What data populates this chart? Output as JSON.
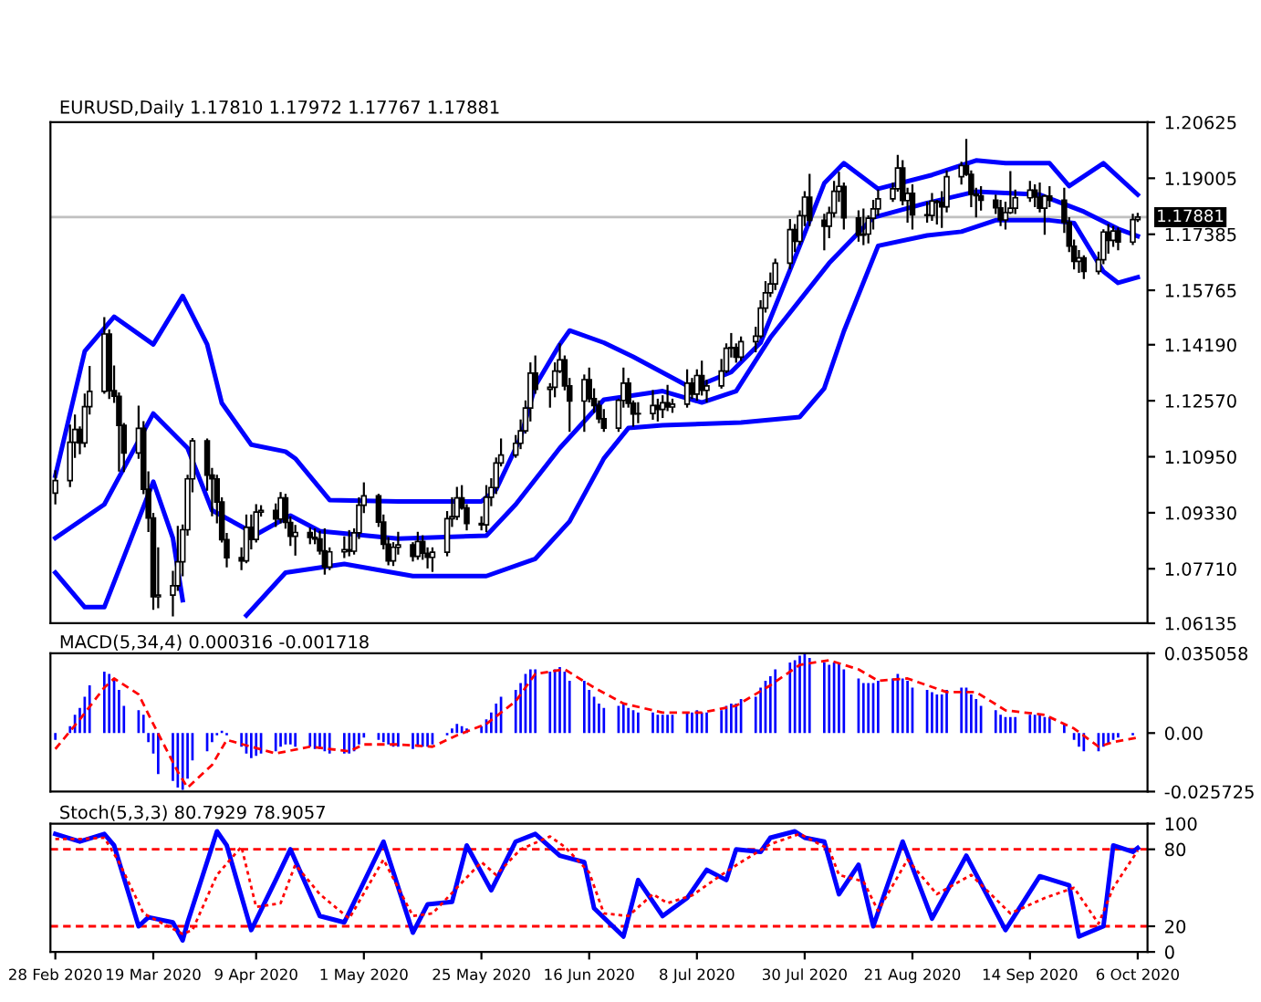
{
  "chart_data": [
    {
      "type": "candlestick",
      "title": "EURUSD,Daily 1.17810 1.17972 1.17767 1.17881",
      "x": [
        "2020-02-28",
        "2020-03-02",
        "2020-03-03",
        "2020-03-04",
        "2020-03-05",
        "2020-03-06",
        "2020-03-09",
        "2020-03-10",
        "2020-03-11",
        "2020-03-12",
        "2020-03-13",
        "2020-03-16",
        "2020-03-17",
        "2020-03-18",
        "2020-03-19",
        "2020-03-20",
        "2020-03-23",
        "2020-03-24",
        "2020-03-25",
        "2020-03-26",
        "2020-03-27",
        "2020-03-30",
        "2020-03-31",
        "2020-04-01",
        "2020-04-02",
        "2020-04-03",
        "2020-04-06",
        "2020-04-07",
        "2020-04-08",
        "2020-04-09",
        "2020-04-10",
        "2020-04-13",
        "2020-04-14",
        "2020-04-15",
        "2020-04-16",
        "2020-04-17",
        "2020-04-20",
        "2020-04-21",
        "2020-04-22",
        "2020-04-23",
        "2020-04-24",
        "2020-04-27",
        "2020-04-28",
        "2020-04-29",
        "2020-04-30",
        "2020-05-01",
        "2020-05-04",
        "2020-05-05",
        "2020-05-06",
        "2020-05-07",
        "2020-05-08",
        "2020-05-11",
        "2020-05-12",
        "2020-05-13",
        "2020-05-14",
        "2020-05-15",
        "2020-05-18",
        "2020-05-19",
        "2020-05-20",
        "2020-05-21",
        "2020-05-22",
        "2020-05-25",
        "2020-05-26",
        "2020-05-27",
        "2020-05-28",
        "2020-05-29",
        "2020-06-01",
        "2020-06-02",
        "2020-06-03",
        "2020-06-04",
        "2020-06-05",
        "2020-06-08",
        "2020-06-09",
        "2020-06-10",
        "2020-06-11",
        "2020-06-12",
        "2020-06-15",
        "2020-06-16",
        "2020-06-17",
        "2020-06-18",
        "2020-06-19",
        "2020-06-22",
        "2020-06-23",
        "2020-06-24",
        "2020-06-25",
        "2020-06-26",
        "2020-06-29",
        "2020-06-30",
        "2020-07-01",
        "2020-07-02",
        "2020-07-03",
        "2020-07-06",
        "2020-07-07",
        "2020-07-08",
        "2020-07-09",
        "2020-07-10",
        "2020-07-13",
        "2020-07-14",
        "2020-07-15",
        "2020-07-16",
        "2020-07-17",
        "2020-07-20",
        "2020-07-21",
        "2020-07-22",
        "2020-07-23",
        "2020-07-24",
        "2020-07-27",
        "2020-07-28",
        "2020-07-29",
        "2020-07-30",
        "2020-07-31",
        "2020-08-03",
        "2020-08-04",
        "2020-08-05",
        "2020-08-06",
        "2020-08-07",
        "2020-08-10",
        "2020-08-11",
        "2020-08-12",
        "2020-08-13",
        "2020-08-14",
        "2020-08-17",
        "2020-08-18",
        "2020-08-19",
        "2020-08-20",
        "2020-08-21",
        "2020-08-24",
        "2020-08-25",
        "2020-08-26",
        "2020-08-27",
        "2020-08-28",
        "2020-08-31",
        "2020-09-01",
        "2020-09-02",
        "2020-09-03",
        "2020-09-04",
        "2020-09-07",
        "2020-09-08",
        "2020-09-09",
        "2020-09-10",
        "2020-09-11",
        "2020-09-14",
        "2020-09-15",
        "2020-09-16",
        "2020-09-17",
        "2020-09-18",
        "2020-09-21",
        "2020-09-22",
        "2020-09-23",
        "2020-09-24",
        "2020-09-25",
        "2020-09-28",
        "2020-09-29",
        "2020-09-30",
        "2020-10-01",
        "2020-10-02",
        "2020-10-05",
        "2020-10-06"
      ],
      "ohlc": [
        [
          1.099,
          1.1053,
          1.096,
          1.1026
        ],
        [
          1.1026,
          1.1185,
          1.101,
          1.1137
        ],
        [
          1.1137,
          1.1214,
          1.1095,
          1.1174
        ],
        [
          1.1174,
          1.118,
          1.1105,
          1.1135
        ],
        [
          1.1135,
          1.1275,
          1.1125,
          1.124
        ],
        [
          1.124,
          1.1355,
          1.122,
          1.1284
        ],
        [
          1.1284,
          1.1496,
          1.128,
          1.145
        ],
        [
          1.145,
          1.146,
          1.1265,
          1.1286
        ],
        [
          1.1286,
          1.1356,
          1.1254,
          1.127
        ],
        [
          1.127,
          1.1278,
          1.1055,
          1.1186
        ],
        [
          1.1186,
          1.119,
          1.1054,
          1.1106
        ],
        [
          1.1106,
          1.124,
          1.1092,
          1.1177
        ],
        [
          1.1177,
          1.1195,
          1.099,
          1.1001
        ],
        [
          1.1001,
          1.105,
          1.088,
          1.0918
        ],
        [
          1.0918,
          1.093,
          1.0655,
          1.069
        ],
        [
          1.069,
          1.083,
          1.066,
          1.0695
        ],
        [
          1.0695,
          1.0762,
          1.0636,
          1.0722
        ],
        [
          1.0722,
          1.0892,
          1.071,
          1.0791
        ],
        [
          1.0791,
          1.0896,
          1.0752,
          1.0884
        ],
        [
          1.0884,
          1.104,
          1.087,
          1.1031
        ],
        [
          1.1031,
          1.1146,
          1.0995,
          1.1141
        ],
        [
          1.1141,
          1.1145,
          1.1,
          1.1042
        ],
        [
          1.1042,
          1.106,
          1.0926,
          1.1031
        ],
        [
          1.1031,
          1.104,
          1.0905,
          1.0964
        ],
        [
          1.0964,
          1.0975,
          1.085,
          1.0855
        ],
        [
          1.0855,
          1.0872,
          1.0778,
          1.0803
        ],
        [
          1.0803,
          1.083,
          1.077,
          1.0794
        ],
        [
          1.0794,
          1.0925,
          1.079,
          1.0891
        ],
        [
          1.0891,
          1.0925,
          1.083,
          1.0856
        ],
        [
          1.0856,
          1.0955,
          1.085,
          1.0935
        ],
        [
          1.0935,
          1.0952,
          1.0925,
          1.094
        ],
        [
          1.094,
          1.0957,
          1.0895,
          1.0915
        ],
        [
          1.0915,
          1.099,
          1.0905,
          1.0976
        ],
        [
          1.0976,
          1.0985,
          1.089,
          1.0905
        ],
        [
          1.0905,
          1.092,
          1.084,
          1.0865
        ],
        [
          1.0865,
          1.0895,
          1.0812,
          1.0876
        ],
        [
          1.0876,
          1.0888,
          1.0845,
          1.0862
        ],
        [
          1.0862,
          1.0885,
          1.0845,
          1.0857
        ],
        [
          1.0857,
          1.0878,
          1.0815,
          1.0823
        ],
        [
          1.0823,
          1.0885,
          1.0757,
          1.0776
        ],
        [
          1.0776,
          1.083,
          1.077,
          1.082
        ],
        [
          1.082,
          1.0862,
          1.0805,
          1.0826
        ],
        [
          1.0826,
          1.088,
          1.081,
          1.0822
        ],
        [
          1.0822,
          1.0885,
          1.0815,
          1.0875
        ],
        [
          1.0875,
          1.0975,
          1.086,
          1.0955
        ],
        [
          1.0955,
          1.1018,
          1.0935,
          1.0982
        ],
        [
          1.0982,
          1.0985,
          1.0895,
          1.0906
        ],
        [
          1.0906,
          1.0925,
          1.083,
          1.0842
        ],
        [
          1.0842,
          1.086,
          1.0784,
          1.0794
        ],
        [
          1.0794,
          1.0845,
          1.0782,
          1.0833
        ],
        [
          1.0833,
          1.0875,
          1.0815,
          1.084
        ],
        [
          1.084,
          1.0845,
          1.0795,
          1.0807
        ],
        [
          1.0807,
          1.0875,
          1.08,
          1.085
        ],
        [
          1.085,
          1.0865,
          1.08,
          1.0816
        ],
        [
          1.0816,
          1.083,
          1.0775,
          1.0804
        ],
        [
          1.0804,
          1.083,
          1.0765,
          1.0819
        ],
        [
          1.0819,
          1.0935,
          1.081,
          1.0916
        ],
        [
          1.0916,
          1.0975,
          1.0895,
          1.0922
        ],
        [
          1.0922,
          1.1005,
          1.0915,
          1.0976
        ],
        [
          1.0976,
          1.101,
          1.0945,
          1.0947
        ],
        [
          1.0947,
          1.0955,
          1.0885,
          1.0902
        ],
        [
          1.0902,
          1.092,
          1.0885,
          1.0898
        ],
        [
          1.0898,
          1.101,
          1.088,
          1.0978
        ],
        [
          1.0978,
          1.103,
          1.0955,
          1.1006
        ],
        [
          1.1006,
          1.109,
          1.099,
          1.1077
        ],
        [
          1.1077,
          1.1145,
          1.107,
          1.11
        ],
        [
          1.11,
          1.1155,
          1.1095,
          1.1134
        ],
        [
          1.1134,
          1.12,
          1.112,
          1.117
        ],
        [
          1.117,
          1.1255,
          1.1165,
          1.1236
        ],
        [
          1.1236,
          1.1365,
          1.12,
          1.1337
        ],
        [
          1.1337,
          1.1385,
          1.128,
          1.129
        ],
        [
          1.129,
          1.1305,
          1.124,
          1.1296
        ],
        [
          1.1296,
          1.1365,
          1.127,
          1.1343
        ],
        [
          1.1343,
          1.142,
          1.134,
          1.1375
        ],
        [
          1.1375,
          1.1385,
          1.129,
          1.13
        ],
        [
          1.13,
          1.132,
          1.117,
          1.1256
        ],
        [
          1.1256,
          1.133,
          1.117,
          1.1318
        ],
        [
          1.1318,
          1.135,
          1.1255,
          1.1263
        ],
        [
          1.1263,
          1.129,
          1.1225,
          1.1243
        ],
        [
          1.1243,
          1.1255,
          1.1195,
          1.1205
        ],
        [
          1.1205,
          1.123,
          1.117,
          1.1178
        ],
        [
          1.1178,
          1.126,
          1.117,
          1.1258
        ],
        [
          1.1258,
          1.135,
          1.124,
          1.1308
        ],
        [
          1.1308,
          1.132,
          1.124,
          1.125
        ],
        [
          1.125,
          1.1255,
          1.1185,
          1.1219
        ],
        [
          1.1219,
          1.125,
          1.1195,
          1.122
        ],
        [
          1.122,
          1.1285,
          1.1205,
          1.1243
        ],
        [
          1.1243,
          1.126,
          1.12,
          1.1232
        ],
        [
          1.1232,
          1.127,
          1.121,
          1.1251
        ],
        [
          1.1251,
          1.13,
          1.123,
          1.1239
        ],
        [
          1.1239,
          1.126,
          1.1225,
          1.1247
        ],
        [
          1.1247,
          1.1345,
          1.124,
          1.1308
        ],
        [
          1.1308,
          1.132,
          1.1265,
          1.1276
        ],
        [
          1.1276,
          1.1345,
          1.126,
          1.133
        ],
        [
          1.133,
          1.137,
          1.1275,
          1.1287
        ],
        [
          1.1287,
          1.1315,
          1.1255,
          1.13
        ],
        [
          1.13,
          1.1375,
          1.1295,
          1.1343
        ],
        [
          1.1343,
          1.142,
          1.134,
          1.1409
        ],
        [
          1.1409,
          1.145,
          1.1385,
          1.1411
        ],
        [
          1.1411,
          1.142,
          1.137,
          1.1383
        ],
        [
          1.1383,
          1.144,
          1.1375,
          1.1428
        ],
        [
          1.1428,
          1.1468,
          1.14,
          1.1444
        ],
        [
          1.1444,
          1.1545,
          1.144,
          1.1525
        ],
        [
          1.1525,
          1.16,
          1.1515,
          1.1569
        ],
        [
          1.1569,
          1.1625,
          1.156,
          1.1595
        ],
        [
          1.1595,
          1.1665,
          1.158,
          1.1655
        ],
        [
          1.1655,
          1.178,
          1.164,
          1.1752
        ],
        [
          1.1752,
          1.1765,
          1.169,
          1.1718
        ],
        [
          1.1718,
          1.1805,
          1.171,
          1.1792
        ],
        [
          1.1792,
          1.186,
          1.1765,
          1.1846
        ],
        [
          1.1846,
          1.191,
          1.1765,
          1.1779
        ],
        [
          1.1779,
          1.1795,
          1.1695,
          1.1762
        ],
        [
          1.1762,
          1.1815,
          1.173,
          1.18
        ],
        [
          1.18,
          1.189,
          1.179,
          1.1863
        ],
        [
          1.1863,
          1.1916,
          1.1835,
          1.1877
        ],
        [
          1.1877,
          1.1885,
          1.1755,
          1.1786
        ],
        [
          1.1786,
          1.1805,
          1.172,
          1.1736
        ],
        [
          1.1736,
          1.181,
          1.171,
          1.1739
        ],
        [
          1.1739,
          1.179,
          1.1715,
          1.1785
        ],
        [
          1.1785,
          1.1835,
          1.1755,
          1.1812
        ],
        [
          1.1812,
          1.1865,
          1.1795,
          1.1841
        ],
        [
          1.1841,
          1.1885,
          1.1835,
          1.187
        ],
        [
          1.187,
          1.1965,
          1.1865,
          1.193
        ],
        [
          1.193,
          1.195,
          1.1825,
          1.1836
        ],
        [
          1.1836,
          1.187,
          1.1775,
          1.1857
        ],
        [
          1.1857,
          1.188,
          1.1755,
          1.1795
        ],
        [
          1.1795,
          1.183,
          1.1775,
          1.1793
        ],
        [
          1.1793,
          1.1855,
          1.178,
          1.1834
        ],
        [
          1.1834,
          1.1835,
          1.177,
          1.1831
        ],
        [
          1.1831,
          1.186,
          1.176,
          1.1818
        ],
        [
          1.1818,
          1.192,
          1.1805,
          1.1905
        ],
        [
          1.1905,
          1.1945,
          1.1885,
          1.1937
        ],
        [
          1.1937,
          1.2011,
          1.191,
          1.1912
        ],
        [
          1.1912,
          1.192,
          1.182,
          1.1854
        ],
        [
          1.1854,
          1.187,
          1.179,
          1.185
        ],
        [
          1.185,
          1.1875,
          1.181,
          1.1837
        ],
        [
          1.1837,
          1.185,
          1.18,
          1.1815
        ],
        [
          1.1815,
          1.1835,
          1.1765,
          1.178
        ],
        [
          1.178,
          1.183,
          1.1755,
          1.1801
        ],
        [
          1.1801,
          1.1918,
          1.18,
          1.1814
        ],
        [
          1.1814,
          1.1865,
          1.18,
          1.1844
        ],
        [
          1.1844,
          1.189,
          1.1835,
          1.1866
        ],
        [
          1.1866,
          1.188,
          1.182,
          1.1846
        ],
        [
          1.1846,
          1.1885,
          1.1805,
          1.1814
        ],
        [
          1.1814,
          1.185,
          1.174,
          1.1849
        ],
        [
          1.1849,
          1.1875,
          1.182,
          1.1837
        ],
        [
          1.1837,
          1.187,
          1.1745,
          1.1773
        ],
        [
          1.1773,
          1.1785,
          1.169,
          1.1704
        ],
        [
          1.1704,
          1.172,
          1.164,
          1.166
        ],
        [
          1.166,
          1.169,
          1.163,
          1.167
        ],
        [
          1.167,
          1.1675,
          1.1612,
          1.1631
        ],
        [
          1.1631,
          1.1685,
          1.1625,
          1.1665
        ],
        [
          1.1665,
          1.175,
          1.1655,
          1.1745
        ],
        [
          1.1745,
          1.1765,
          1.1685,
          1.1721
        ],
        [
          1.1721,
          1.176,
          1.1705,
          1.1748
        ],
        [
          1.1748,
          1.1755,
          1.1695,
          1.1716
        ],
        [
          1.1716,
          1.1795,
          1.171,
          1.1781
        ],
        [
          1.1781,
          1.17972,
          1.17767,
          1.17881
        ]
      ],
      "series": [
        {
          "type": "line",
          "color": "#0000ff",
          "line_style": "solid",
          "x": [
            "2020-02-28",
            "2020-03-05",
            "2020-03-11",
            "2020-03-19",
            "2020-03-25",
            "2020-03-30",
            "2020-04-02",
            "2020-04-08",
            "2020-04-15",
            "2020-04-17",
            "2020-04-24",
            "2020-05-08",
            "2020-05-25",
            "2020-05-28",
            "2020-06-02",
            "2020-06-05",
            "2020-06-10",
            "2020-06-12",
            "2020-06-19",
            "2020-06-25",
            "2020-07-07",
            "2020-07-15",
            "2020-07-21",
            "2020-07-29",
            "2020-08-03",
            "2020-08-07",
            "2020-08-14",
            "2020-08-25",
            "2020-09-03",
            "2020-09-09",
            "2020-09-18",
            "2020-09-22",
            "2020-09-29",
            "2020-10-06"
          ],
          "values": [
            1.104,
            1.14,
            1.15,
            1.142,
            1.156,
            1.142,
            1.125,
            1.113,
            1.111,
            1.109,
            1.097,
            1.0966,
            1.0966,
            1.1,
            1.115,
            1.13,
            1.142,
            1.146,
            1.1425,
            1.1384,
            1.1293,
            1.134,
            1.1425,
            1.1705,
            1.1886,
            1.1944,
            1.187,
            1.191,
            1.1952,
            1.1944,
            1.1944,
            1.1878,
            1.1944,
            1.1853
          ]
        },
        {
          "type": "line",
          "color": "#0000ff",
          "line_style": "solid",
          "x": [
            "2020-02-28",
            "2020-03-09",
            "2020-03-19",
            "2020-03-26",
            "2020-03-31",
            "2020-04-09",
            "2020-04-16",
            "2020-04-22",
            "2020-05-08",
            "2020-05-26",
            "2020-06-01",
            "2020-06-10",
            "2020-06-19",
            "2020-07-01",
            "2020-07-09",
            "2020-07-16",
            "2020-07-23",
            "2020-08-04",
            "2020-08-13",
            "2020-08-24",
            "2020-09-03",
            "2020-09-16",
            "2020-09-25",
            "2020-10-02",
            "2020-10-06"
          ],
          "values": [
            1.086,
            1.0957,
            1.122,
            1.112,
            1.094,
            1.087,
            1.0925,
            1.088,
            1.0858,
            1.0867,
            1.0957,
            1.112,
            1.126,
            1.1285,
            1.1252,
            1.1285,
            1.144,
            1.1655,
            1.1787,
            1.1829,
            1.1862,
            1.1853,
            1.1804,
            1.1754,
            1.1733
          ]
        },
        {
          "type": "line",
          "color": "#0000ff",
          "line_style": "solid",
          "x": [
            "2020-02-28",
            "2020-03-05",
            "2020-03-09",
            "2020-03-19",
            "2020-03-23",
            "2020-03-25",
            "2020-03-27",
            "2020-04-02",
            "2020-04-07",
            "2020-04-15",
            "2020-04-27",
            "2020-05-11",
            "2020-05-26",
            "2020-06-05",
            "2020-06-12",
            "2020-06-19",
            "2020-06-24",
            "2020-07-01",
            "2020-07-17",
            "2020-07-29",
            "2020-08-03",
            "2020-08-07",
            "2020-08-14",
            "2020-08-24",
            "2020-08-31",
            "2020-09-07",
            "2020-09-18",
            "2020-09-23",
            "2020-09-29",
            "2020-10-02",
            "2020-10-06"
          ],
          "values": [
            1.076,
            1.066,
            1.066,
            1.1023,
            1.086,
            1.068,
            null,
            null,
            1.0636,
            1.076,
            1.0785,
            1.075,
            1.075,
            1.08,
            1.0908,
            1.109,
            1.1178,
            1.1186,
            1.1194,
            1.121,
            1.1293,
            1.1458,
            1.1705,
            1.1735,
            1.1746,
            1.1779,
            1.1779,
            1.1771,
            1.1631,
            1.1598,
            1.1614
          ]
        }
      ],
      "ref_lines": [
        {
          "axis": "y",
          "value": 1.17881,
          "label": "1.17881",
          "color": "#c0c0c0",
          "line_style": "solid"
        }
      ],
      "xlim": [
        "2020-02-27",
        "2020-10-08"
      ],
      "ylim": [
        1.06135,
        1.20625
      ],
      "yticks": [
        {
          "value": 1.20625,
          "label": "1.20625"
        },
        {
          "value": 1.19005,
          "label": "1.19005"
        },
        {
          "value": 1.17385,
          "label": "1.17385"
        },
        {
          "value": 1.15765,
          "label": "1.15765"
        },
        {
          "value": 1.1419,
          "label": "1.14190"
        },
        {
          "value": 1.1257,
          "label": "1.12570"
        },
        {
          "value": 1.1095,
          "label": "1.10950"
        },
        {
          "value": 1.0933,
          "label": "1.09330"
        },
        {
          "value": 1.0771,
          "label": "1.07710"
        },
        {
          "value": 1.06135,
          "label": "1.06135"
        }
      ],
      "tick_labels": "y"
    },
    {
      "type": "bar",
      "title": "MACD(5,34,4) 0.000316 -0.001718",
      "x": [
        "2020-02-28",
        "2020-03-02",
        "2020-03-03",
        "2020-03-04",
        "2020-03-05",
        "2020-03-06",
        "2020-03-09",
        "2020-03-10",
        "2020-03-11",
        "2020-03-12",
        "2020-03-13",
        "2020-03-16",
        "2020-03-17",
        "2020-03-18",
        "2020-03-19",
        "2020-03-20",
        "2020-03-23",
        "2020-03-24",
        "2020-03-25",
        "2020-03-26",
        "2020-03-27",
        "2020-03-30",
        "2020-03-31",
        "2020-04-01",
        "2020-04-02",
        "2020-04-03",
        "2020-04-06",
        "2020-04-07",
        "2020-04-08",
        "2020-04-09",
        "2020-04-10",
        "2020-04-13",
        "2020-04-14",
        "2020-04-15",
        "2020-04-16",
        "2020-04-17",
        "2020-04-20",
        "2020-04-21",
        "2020-04-22",
        "2020-04-23",
        "2020-04-24",
        "2020-04-27",
        "2020-04-28",
        "2020-04-29",
        "2020-04-30",
        "2020-05-01",
        "2020-05-04",
        "2020-05-05",
        "2020-05-06",
        "2020-05-07",
        "2020-05-08",
        "2020-05-11",
        "2020-05-12",
        "2020-05-13",
        "2020-05-14",
        "2020-05-15",
        "2020-05-18",
        "2020-05-19",
        "2020-05-20",
        "2020-05-21",
        "2020-05-22",
        "2020-05-25",
        "2020-05-26",
        "2020-05-27",
        "2020-05-28",
        "2020-05-29",
        "2020-06-01",
        "2020-06-02",
        "2020-06-03",
        "2020-06-04",
        "2020-06-05",
        "2020-06-08",
        "2020-06-09",
        "2020-06-10",
        "2020-06-11",
        "2020-06-12",
        "2020-06-15",
        "2020-06-16",
        "2020-06-17",
        "2020-06-18",
        "2020-06-19",
        "2020-06-22",
        "2020-06-23",
        "2020-06-24",
        "2020-06-25",
        "2020-06-26",
        "2020-06-29",
        "2020-06-30",
        "2020-07-01",
        "2020-07-02",
        "2020-07-03",
        "2020-07-06",
        "2020-07-07",
        "2020-07-08",
        "2020-07-09",
        "2020-07-10",
        "2020-07-13",
        "2020-07-14",
        "2020-07-15",
        "2020-07-16",
        "2020-07-17",
        "2020-07-20",
        "2020-07-21",
        "2020-07-22",
        "2020-07-23",
        "2020-07-24",
        "2020-07-27",
        "2020-07-28",
        "2020-07-29",
        "2020-07-30",
        "2020-07-31",
        "2020-08-03",
        "2020-08-04",
        "2020-08-05",
        "2020-08-06",
        "2020-08-07",
        "2020-08-10",
        "2020-08-11",
        "2020-08-12",
        "2020-08-13",
        "2020-08-14",
        "2020-08-17",
        "2020-08-18",
        "2020-08-19",
        "2020-08-20",
        "2020-08-21",
        "2020-08-24",
        "2020-08-25",
        "2020-08-26",
        "2020-08-27",
        "2020-08-28",
        "2020-08-31",
        "2020-09-01",
        "2020-09-02",
        "2020-09-03",
        "2020-09-04",
        "2020-09-07",
        "2020-09-08",
        "2020-09-09",
        "2020-09-10",
        "2020-09-11",
        "2020-09-14",
        "2020-09-15",
        "2020-09-16",
        "2020-09-17",
        "2020-09-18",
        "2020-09-21",
        "2020-09-22",
        "2020-09-23",
        "2020-09-24",
        "2020-09-25",
        "2020-09-28",
        "2020-09-29",
        "2020-09-30",
        "2020-10-01",
        "2020-10-02",
        "2020-10-05",
        "2020-10-06"
      ],
      "series": [
        {
          "type": "bar",
          "color": "#0000ff",
          "values": [
            -0.003,
            0.003,
            0.008,
            0.011,
            0.016,
            0.021,
            0.027,
            0.026,
            0.024,
            0.019,
            0.012,
            0.01,
            0.008,
            -0.004,
            -0.009,
            -0.018,
            -0.021,
            -0.024,
            -0.025,
            -0.02,
            -0.012,
            -0.008,
            -0.004,
            -0.001,
            0.001,
            -0.001,
            -0.006,
            -0.009,
            -0.011,
            -0.01,
            -0.009,
            -0.008,
            -0.006,
            -0.005,
            -0.005,
            -0.006,
            -0.006,
            -0.007,
            -0.007,
            -0.008,
            -0.009,
            -0.009,
            -0.009,
            -0.008,
            -0.005,
            -0.002,
            -0.003,
            -0.004,
            -0.005,
            -0.006,
            -0.006,
            -0.007,
            -0.006,
            -0.006,
            -0.006,
            -0.005,
            -0.001,
            0.002,
            0.004,
            0.003,
            0.002,
            0.003,
            0.006,
            0.009,
            0.013,
            0.016,
            0.019,
            0.022,
            0.026,
            0.028,
            0.028,
            0.027,
            0.028,
            0.029,
            0.027,
            0.023,
            0.023,
            0.019,
            0.016,
            0.013,
            0.011,
            0.012,
            0.013,
            0.011,
            0.01,
            0.009,
            0.009,
            0.008,
            0.008,
            0.008,
            0.008,
            0.009,
            0.009,
            0.01,
            0.009,
            0.009,
            0.01,
            0.012,
            0.013,
            0.013,
            0.015,
            0.016,
            0.02,
            0.023,
            0.025,
            0.028,
            0.031,
            0.032,
            0.034,
            0.035,
            0.033,
            0.031,
            0.03,
            0.031,
            0.031,
            0.028,
            0.024,
            0.022,
            0.022,
            0.022,
            0.023,
            0.024,
            0.026,
            0.024,
            0.023,
            0.02,
            0.019,
            0.018,
            0.017,
            0.017,
            0.019,
            0.02,
            0.02,
            0.017,
            0.015,
            0.012,
            0.01,
            0.008,
            0.007,
            0.007,
            0.007,
            0.008,
            0.008,
            0.008,
            0.007,
            0.007,
            0.004,
            0.0,
            -0.003,
            -0.006,
            -0.008,
            -0.008,
            -0.006,
            -0.005,
            -0.003,
            -0.002,
            -0.001,
            0.0
          ]
        },
        {
          "type": "line",
          "color": "#ff0000",
          "line_style": "dashed",
          "x": [
            "2020-02-28",
            "2020-03-04",
            "2020-03-09",
            "2020-03-11",
            "2020-03-16",
            "2020-03-19",
            "2020-03-24",
            "2020-03-26",
            "2020-03-31",
            "2020-04-03",
            "2020-04-08",
            "2020-04-13",
            "2020-04-20",
            "2020-04-28",
            "2020-05-01",
            "2020-05-08",
            "2020-05-15",
            "2020-05-20",
            "2020-05-26",
            "2020-06-01",
            "2020-06-05",
            "2020-06-11",
            "2020-06-17",
            "2020-06-23",
            "2020-07-01",
            "2020-07-09",
            "2020-07-16",
            "2020-07-23",
            "2020-07-29",
            "2020-08-04",
            "2020-08-10",
            "2020-08-14",
            "2020-08-20",
            "2020-08-28",
            "2020-09-03",
            "2020-09-09",
            "2020-09-17",
            "2020-09-23",
            "2020-09-28",
            "2020-10-01",
            "2020-10-06"
          ],
          "values": [
            -0.007,
            0.006,
            0.02,
            0.024,
            0.017,
            0.004,
            -0.017,
            -0.024,
            -0.014,
            -0.003,
            -0.006,
            -0.009,
            -0.006,
            -0.008,
            -0.005,
            -0.005,
            -0.006,
            -0.001,
            0.004,
            0.014,
            0.026,
            0.028,
            0.02,
            0.013,
            0.009,
            0.009,
            0.012,
            0.021,
            0.03,
            0.032,
            0.028,
            0.023,
            0.024,
            0.018,
            0.018,
            0.01,
            0.008,
            0.002,
            -0.006,
            -0.004,
            -0.002
          ]
        }
      ],
      "xlim": [
        "2020-02-27",
        "2020-10-08"
      ],
      "ylim": [
        -0.025725,
        0.035058
      ],
      "yticks": [
        0.035058,
        {
          "value": 0,
          "label": "0.00"
        },
        {
          "value": -0.025725,
          "label": "-0.025725"
        }
      ],
      "tick_labels": "y"
    },
    {
      "type": "line",
      "title": "Stoch(5,3,3) 80.7929 78.9057",
      "series": [
        {
          "type": "line",
          "color": "#0000ff",
          "line_style": "solid",
          "x": [
            "2020-02-28",
            "2020-03-04",
            "2020-03-09",
            "2020-03-11",
            "2020-03-16",
            "2020-03-18",
            "2020-03-23",
            "2020-03-25",
            "2020-03-26",
            "2020-04-01",
            "2020-04-03",
            "2020-04-08",
            "2020-04-13",
            "2020-04-16",
            "2020-04-22",
            "2020-04-27",
            "2020-05-05",
            "2020-05-11",
            "2020-05-14",
            "2020-05-19",
            "2020-05-22",
            "2020-05-27",
            "2020-06-01",
            "2020-06-05",
            "2020-06-10",
            "2020-06-15",
            "2020-06-17",
            "2020-06-23",
            "2020-06-26",
            "2020-07-01",
            "2020-07-06",
            "2020-07-10",
            "2020-07-14",
            "2020-07-16",
            "2020-07-21",
            "2020-07-23",
            "2020-07-28",
            "2020-07-30",
            "2020-08-03",
            "2020-08-06",
            "2020-08-10",
            "2020-08-13",
            "2020-08-19",
            "2020-08-25",
            "2020-09-01",
            "2020-09-09",
            "2020-09-16",
            "2020-09-22",
            "2020-09-24",
            "2020-09-29",
            "2020-10-01",
            "2020-10-05",
            "2020-10-06"
          ],
          "values": [
            92,
            86,
            92,
            83,
            20,
            27,
            23,
            9,
            23,
            94,
            83,
            17,
            56,
            80,
            28,
            23,
            86,
            15,
            37,
            39,
            83,
            48,
            86,
            92,
            75,
            70,
            34,
            12,
            56,
            28,
            42,
            64,
            56,
            80,
            78,
            89,
            94,
            89,
            86,
            45,
            68,
            20,
            86,
            26,
            75,
            17,
            59,
            52,
            12,
            20,
            83,
            78,
            81
          ]
        },
        {
          "type": "line",
          "color": "#ff0000",
          "line_style": "dotted",
          "x": [
            "2020-02-28",
            "2020-03-04",
            "2020-03-09",
            "2020-03-12",
            "2020-03-17",
            "2020-03-20",
            "2020-03-25",
            "2020-03-27",
            "2020-04-01",
            "2020-04-06",
            "2020-04-09",
            "2020-04-14",
            "2020-04-17",
            "2020-04-22",
            "2020-04-28",
            "2020-05-05",
            "2020-05-11",
            "2020-05-15",
            "2020-05-20",
            "2020-05-25",
            "2020-05-28",
            "2020-06-02",
            "2020-06-08",
            "2020-06-11",
            "2020-06-16",
            "2020-06-19",
            "2020-06-24",
            "2020-06-29",
            "2020-07-02",
            "2020-07-07",
            "2020-07-13",
            "2020-07-17",
            "2020-07-23",
            "2020-07-29",
            "2020-08-04",
            "2020-08-06",
            "2020-08-11",
            "2020-08-14",
            "2020-08-20",
            "2020-08-26",
            "2020-09-02",
            "2020-09-10",
            "2020-09-17",
            "2020-09-23",
            "2020-09-28",
            "2020-10-01",
            "2020-10-06"
          ],
          "values": [
            88,
            88,
            89,
            70,
            30,
            24,
            14,
            17,
            60,
            82,
            35,
            38,
            68,
            45,
            26,
            72,
            28,
            30,
            50,
            70,
            60,
            80,
            90,
            82,
            62,
            30,
            28,
            45,
            38,
            44,
            60,
            70,
            84,
            92,
            80,
            60,
            55,
            32,
            72,
            45,
            60,
            30,
            42,
            50,
            22,
            50,
            79
          ]
        }
      ],
      "ref_lines": [
        {
          "axis": "y",
          "value": 80,
          "color": "#ff0000",
          "line_style": "dashed"
        },
        {
          "axis": "y",
          "value": 20,
          "color": "#ff0000",
          "line_style": "dashed"
        }
      ],
      "xlim": [
        "2020-02-27",
        "2020-10-08"
      ],
      "ylim": [
        0,
        100
      ],
      "xticks": [
        {
          "value": "2020-02-28",
          "label": "28 Feb 2020"
        },
        {
          "value": "2020-03-19",
          "label": "19 Mar 2020"
        },
        {
          "value": "2020-04-09",
          "label": "9 Apr 2020"
        },
        {
          "value": "2020-05-01",
          "label": "1 May 2020"
        },
        {
          "value": "2020-05-25",
          "label": "25 May 2020"
        },
        {
          "value": "2020-06-16",
          "label": "16 Jun 2020"
        },
        {
          "value": "2020-07-08",
          "label": "8 Jul 2020"
        },
        {
          "value": "2020-07-30",
          "label": "30 Jul 2020"
        },
        {
          "value": "2020-08-21",
          "label": "21 Aug 2020"
        },
        {
          "value": "2020-09-14",
          "label": "14 Sep 2020"
        },
        {
          "value": "2020-10-06",
          "label": "6 Oct 2020"
        }
      ],
      "yticks": [
        100,
        80,
        20,
        0
      ]
    }
  ]
}
